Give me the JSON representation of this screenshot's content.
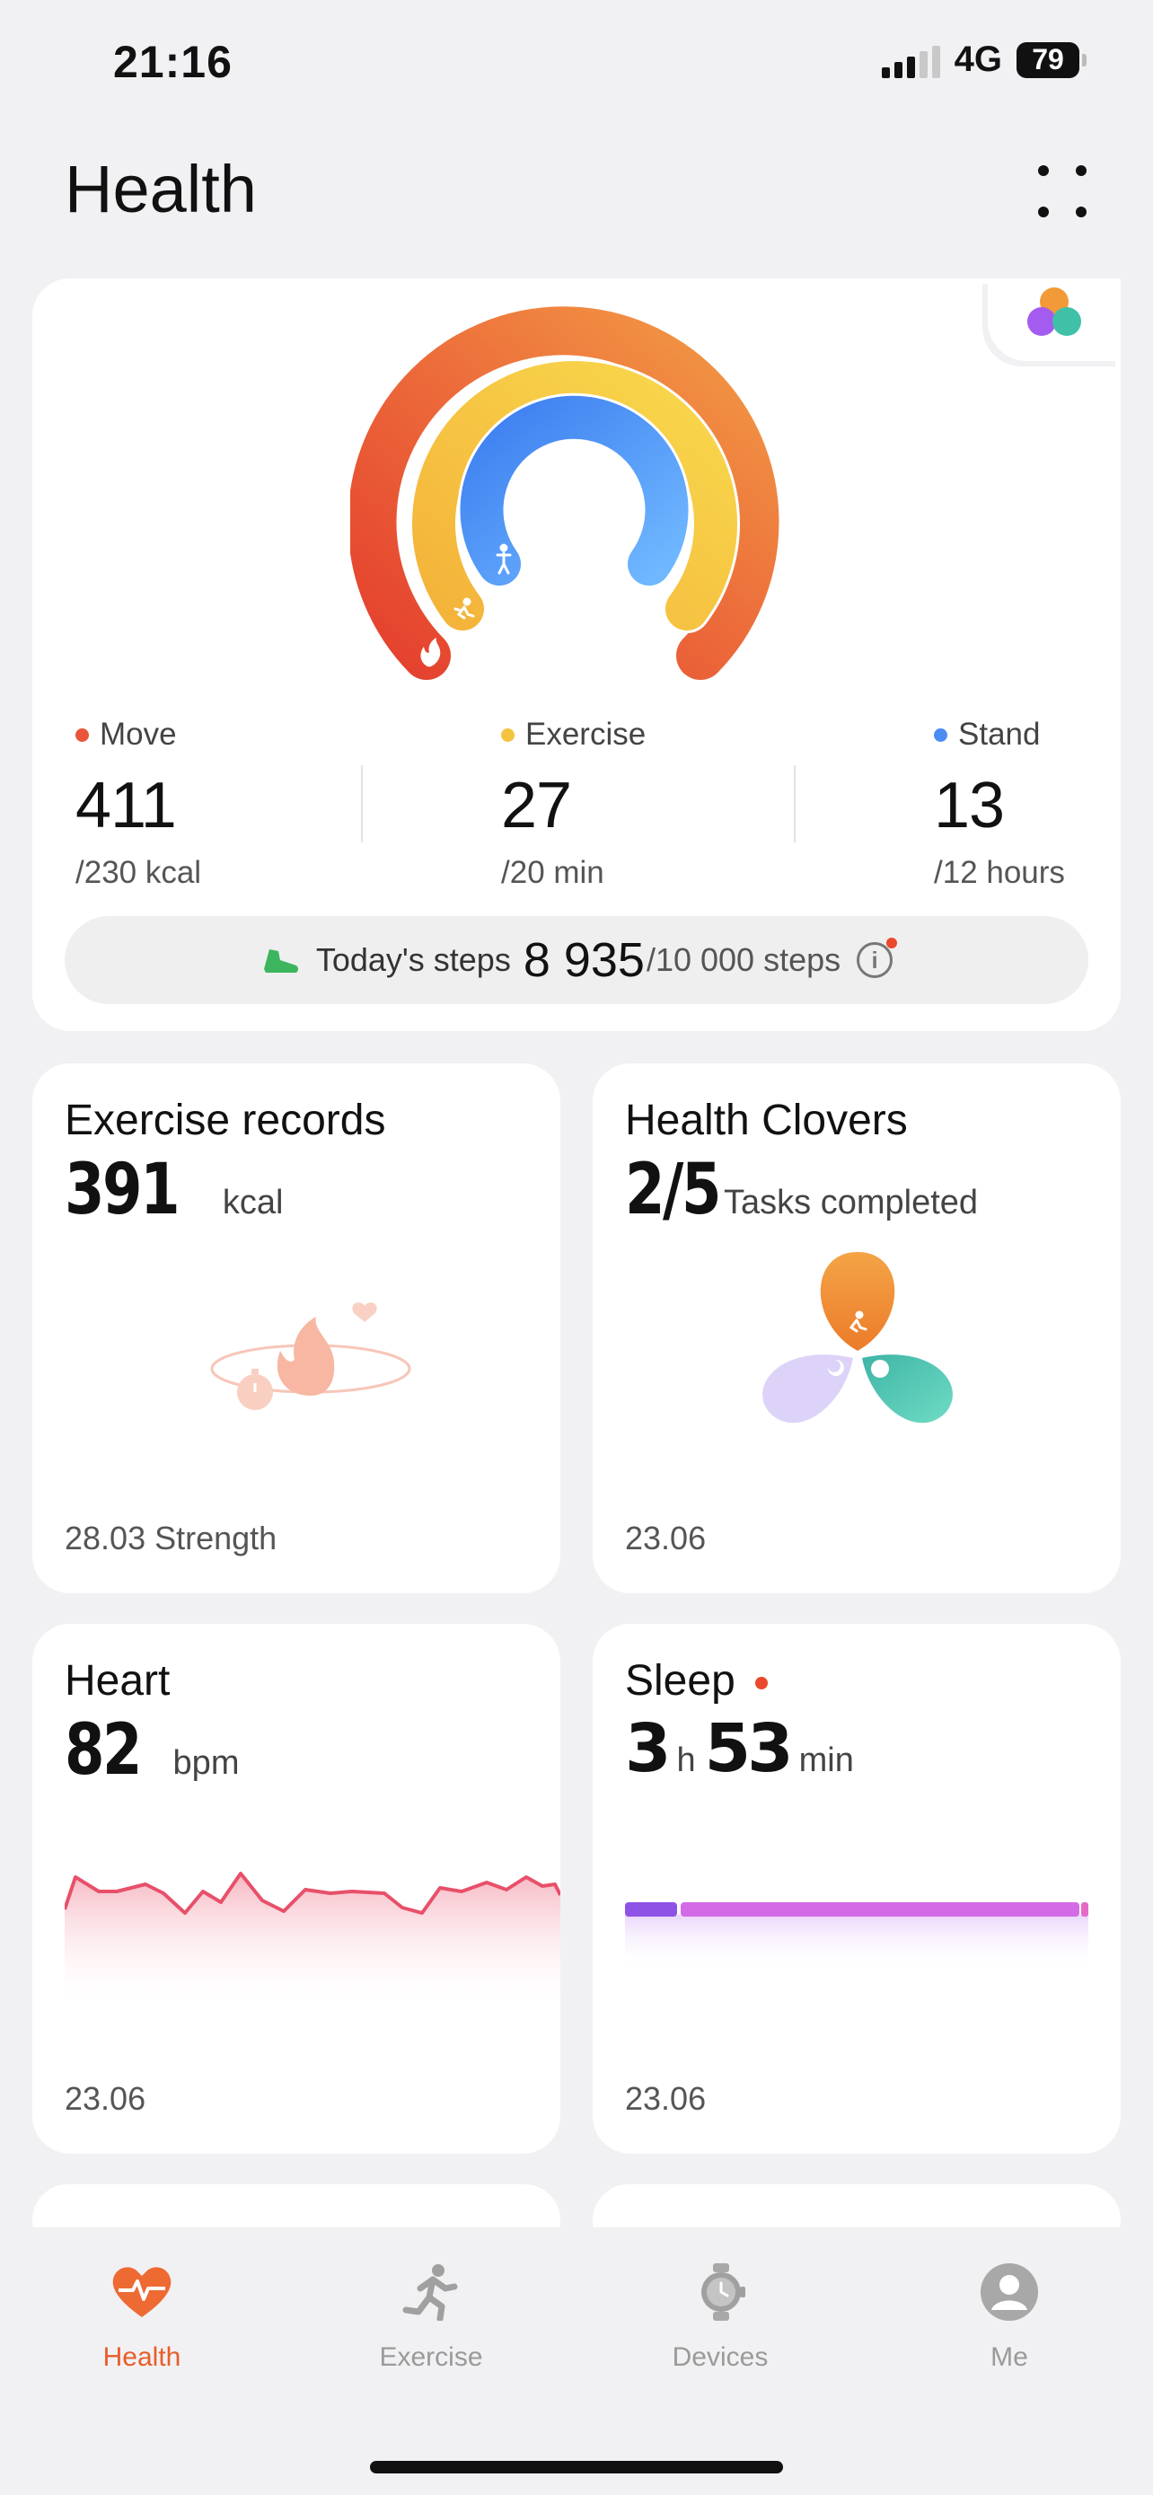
{
  "status": {
    "time": "21:16",
    "network": "4G",
    "battery": "79"
  },
  "header": {
    "title": "Health"
  },
  "activity": {
    "move": {
      "label": "Move",
      "value": "411",
      "goal": "/230 kcal",
      "color": "#e8553a"
    },
    "exercise": {
      "label": "Exercise",
      "value": "27",
      "goal": "/20 min",
      "color": "#f5c342"
    },
    "stand": {
      "label": "Stand",
      "value": "13",
      "goal": "/12 hours",
      "color": "#4b8cf5"
    },
    "steps": {
      "label": "Today's steps",
      "value": "8 935",
      "goal": "/10 000 steps"
    }
  },
  "tiles": {
    "exercise_records": {
      "title": "Exercise records",
      "value": "391",
      "unit": "kcal",
      "footer": "28.03 Strength"
    },
    "health_clovers": {
      "title": "Health Clovers",
      "value": "2/5",
      "unit": "Tasks completed",
      "footer": "23.06"
    },
    "heart": {
      "title": "Heart",
      "value": "82",
      "unit": "bpm",
      "footer": "23.06"
    },
    "sleep": {
      "title": "Sleep",
      "hours": "3",
      "hours_unit": "h",
      "minutes": "53",
      "minutes_unit": "min",
      "footer": "23.06"
    }
  },
  "nav": [
    {
      "label": "Health",
      "icon": "heart-pulse-icon",
      "active": true
    },
    {
      "label": "Exercise",
      "icon": "runner-icon",
      "active": false
    },
    {
      "label": "Devices",
      "icon": "watch-icon",
      "active": false
    },
    {
      "label": "Me",
      "icon": "user-icon",
      "active": false
    }
  ]
}
